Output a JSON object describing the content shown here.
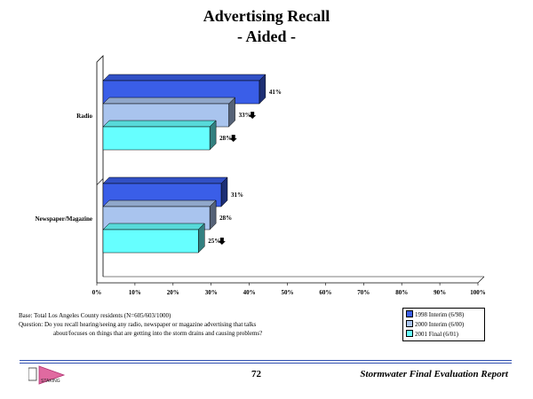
{
  "chart_data": {
    "type": "bar",
    "orientation": "horizontal",
    "title": "Advertising Recall",
    "subtitle": "- Aided -",
    "categories": [
      "Radio",
      "Newspaper/Magazine"
    ],
    "series": [
      {
        "name": "1998 Interim (6/98)",
        "values": [
          41,
          31
        ],
        "color": "#3a5ee8",
        "significant_drop": [
          false,
          false
        ]
      },
      {
        "name": "2000 Interim (6/00)",
        "values": [
          33,
          28
        ],
        "color": "#a9c4ee",
        "significant_drop": [
          true,
          false
        ]
      },
      {
        "name": "2001 Final (6/01)",
        "values": [
          28,
          25
        ],
        "color": "#66ffff",
        "significant_drop": [
          true,
          true
        ]
      }
    ],
    "x_ticks": [
      "0%",
      "10%",
      "20%",
      "30%",
      "40%",
      "50%",
      "60%",
      "70%",
      "80%",
      "90%",
      "100%"
    ],
    "xlim": [
      0,
      100
    ],
    "value_suffix": "%",
    "grid": false,
    "legend_position": "bottom-right",
    "style": "3d"
  },
  "notes": {
    "base": "Base: Total Los Angeles County residents (N=605/603/1000)",
    "question_1": "Question:  Do you recall hearing/seeing any radio, newspaper or magazine advertising that talks",
    "question_2": "about/focuses on things that are getting into the storm drains and causing problems?"
  },
  "footer": {
    "page_number": "72",
    "report_name": "Stormwater Final Evaluation Report",
    "logo_text": "STAKING"
  }
}
